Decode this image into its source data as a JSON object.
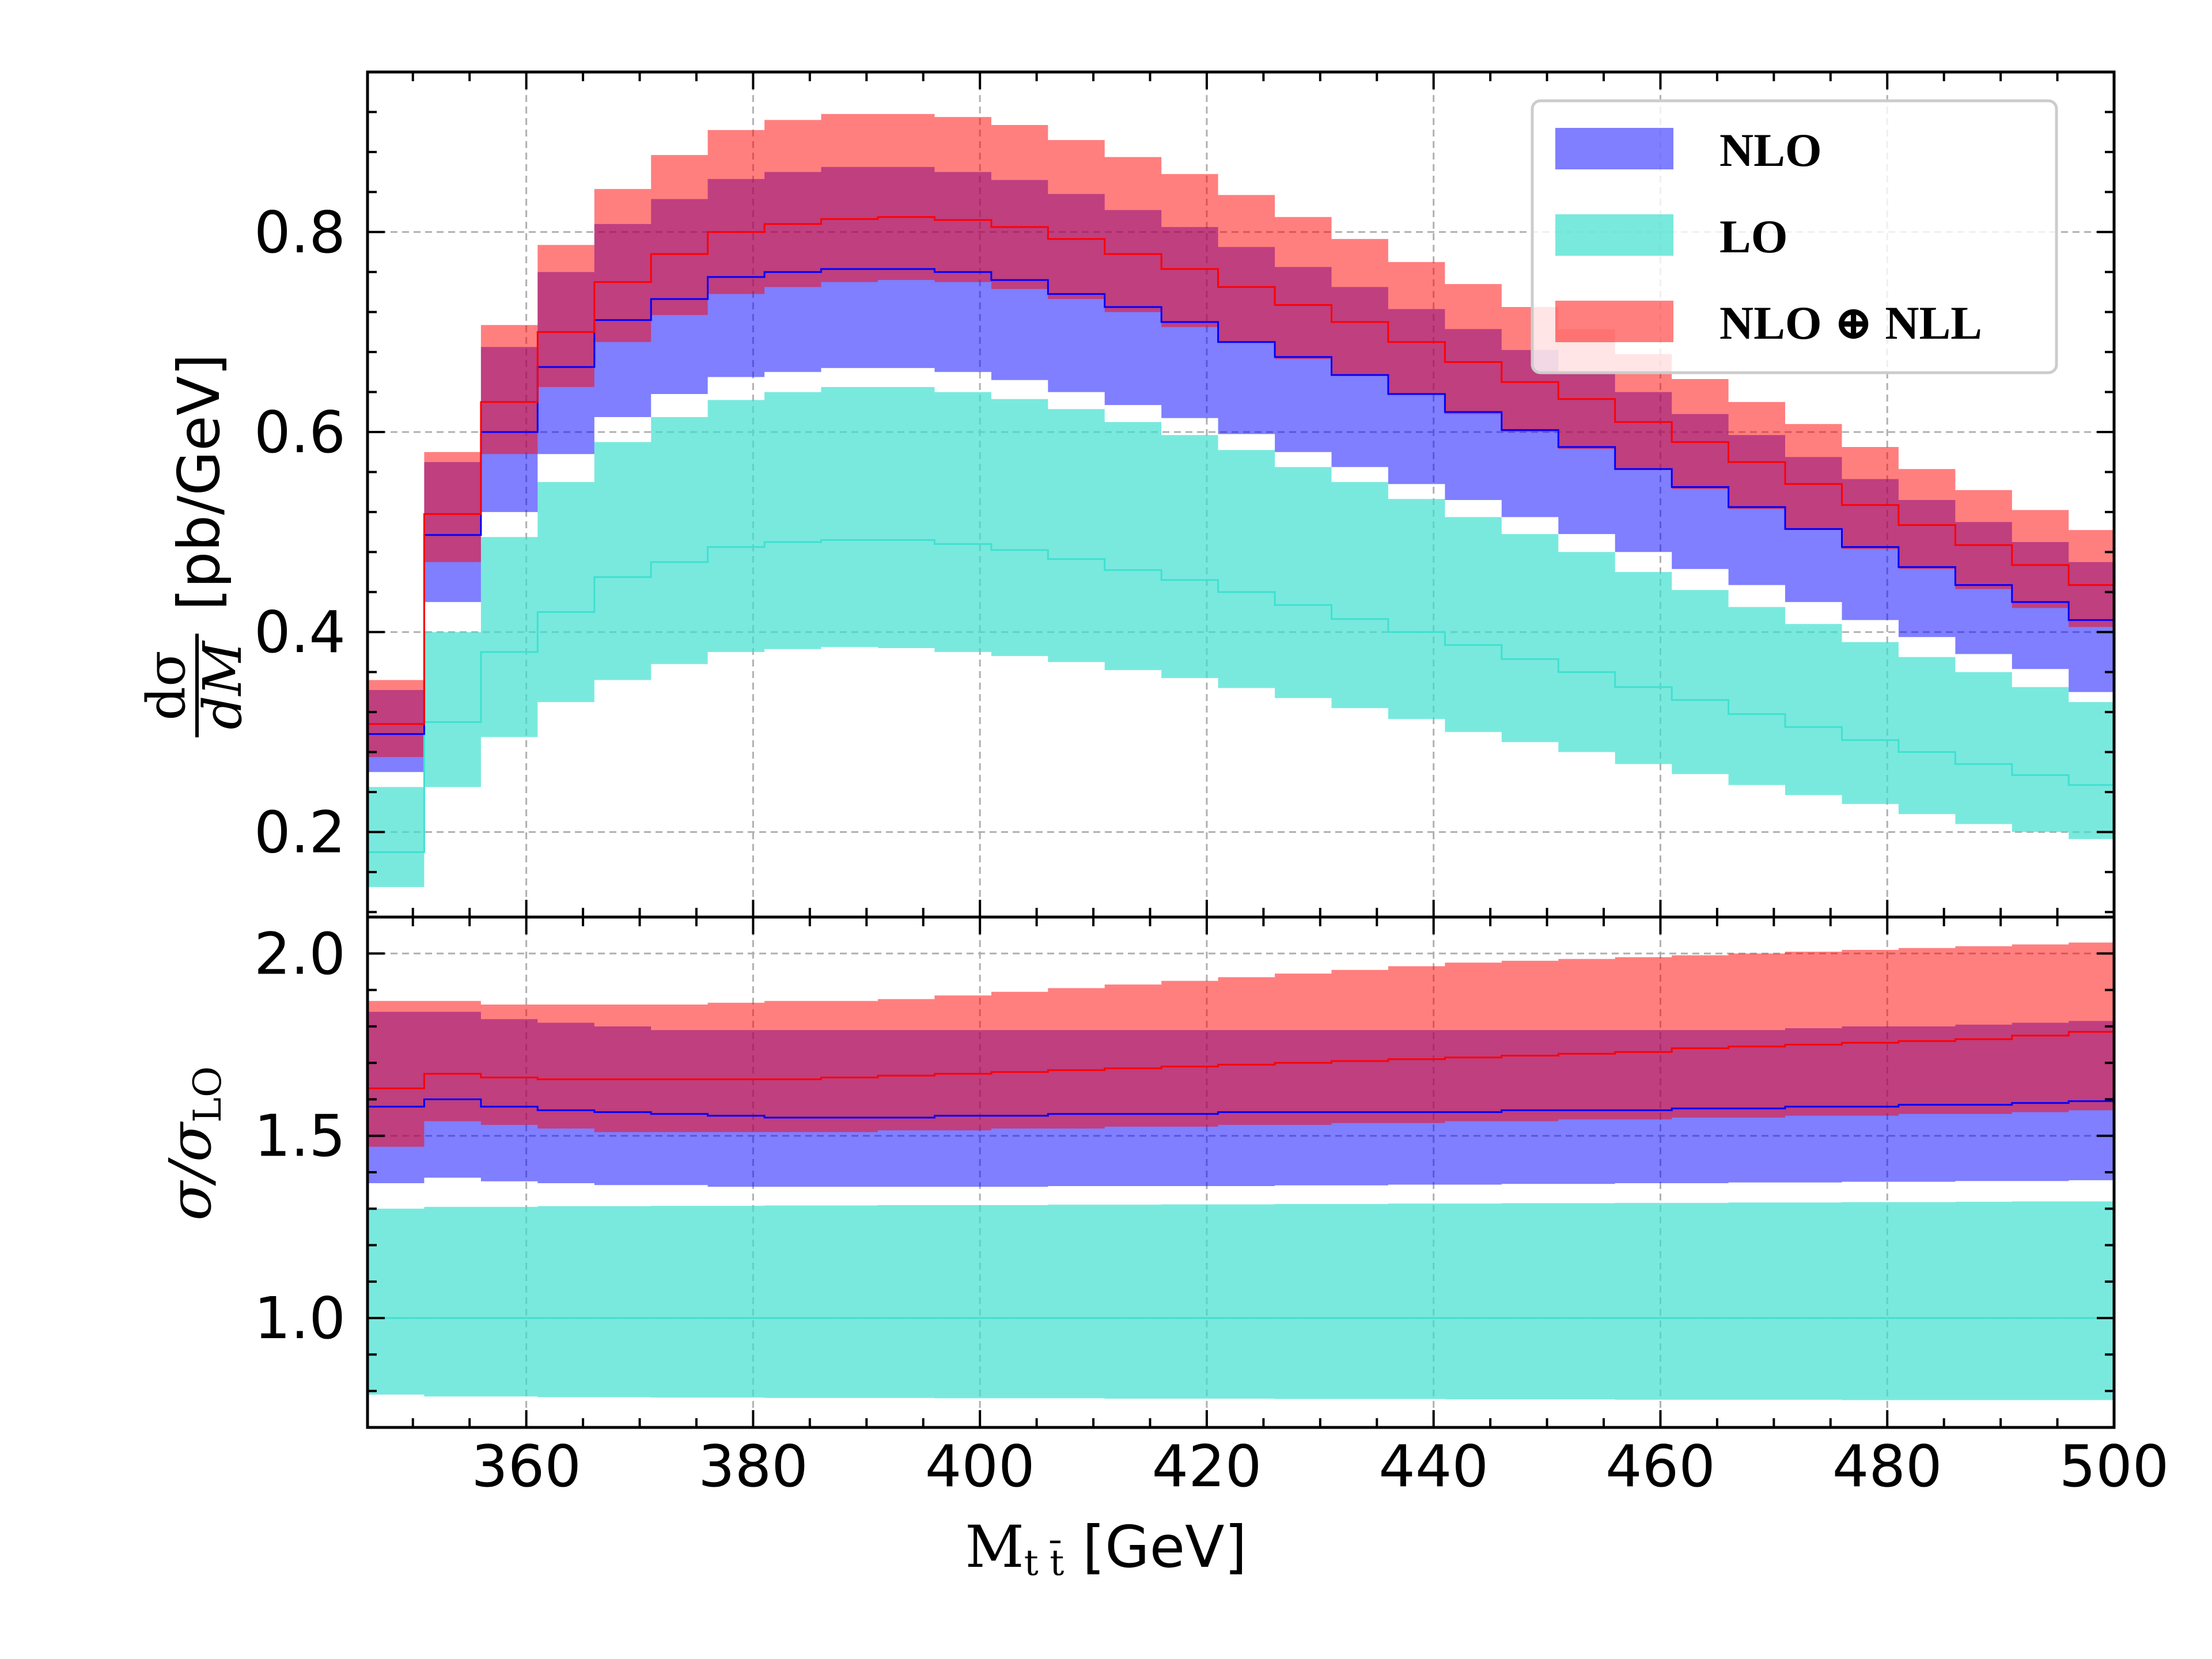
{
  "chart_data": {
    "type": "area",
    "bin_edges": [
      346,
      351,
      356,
      361,
      366,
      371,
      376,
      381,
      386,
      391,
      396,
      401,
      406,
      411,
      416,
      421,
      426,
      431,
      436,
      441,
      446,
      451,
      456,
      461,
      466,
      471,
      476,
      481,
      486,
      491,
      496,
      500
    ],
    "xlabel": {
      "main": "M",
      "sub": "t t̄",
      "unit": " [GeV]"
    },
    "xlim": [
      346,
      500
    ],
    "x_ticks": [
      360,
      380,
      400,
      420,
      440,
      460,
      480,
      500
    ],
    "x_tick_labels": [
      "360",
      "380",
      "400",
      "420",
      "440",
      "460",
      "480",
      "500"
    ],
    "legend": {
      "position": "top-right",
      "entries": [
        {
          "key": "nlo",
          "label": "NLO"
        },
        {
          "key": "lo",
          "label": "LO"
        },
        {
          "key": "nlonll",
          "label": "NLO ⊕ NLL"
        }
      ]
    },
    "grid": true,
    "colors": {
      "lo": "#40e0d0",
      "nlo": "#0000ff",
      "nlonll": "#ff0000"
    },
    "top_panel": {
      "ylabel": "[pb/GeV]",
      "ylabel_fraction": {
        "numerator": "dσ",
        "denominator": "dM"
      },
      "ylim": [
        0.115,
        0.96
      ],
      "y_ticks": [
        0.2,
        0.4,
        0.6,
        0.8
      ],
      "y_tick_labels": [
        "0.2",
        "0.4",
        "0.6",
        "0.8"
      ],
      "series": [
        {
          "key": "lo",
          "central": [
            0.18,
            0.31,
            0.38,
            0.42,
            0.455,
            0.47,
            0.485,
            0.49,
            0.492,
            0.492,
            0.488,
            0.482,
            0.473,
            0.462,
            0.452,
            0.44,
            0.427,
            0.413,
            0.4,
            0.387,
            0.373,
            0.36,
            0.345,
            0.332,
            0.318,
            0.305,
            0.292,
            0.28,
            0.268,
            0.257,
            0.247
          ],
          "lower": [
            0.145,
            0.245,
            0.295,
            0.33,
            0.352,
            0.368,
            0.38,
            0.383,
            0.385,
            0.384,
            0.38,
            0.376,
            0.37,
            0.362,
            0.354,
            0.344,
            0.334,
            0.324,
            0.313,
            0.3,
            0.29,
            0.28,
            0.268,
            0.258,
            0.247,
            0.237,
            0.228,
            0.218,
            0.208,
            0.2,
            0.193
          ],
          "upper": [
            0.245,
            0.4,
            0.495,
            0.55,
            0.59,
            0.615,
            0.632,
            0.64,
            0.645,
            0.645,
            0.64,
            0.633,
            0.623,
            0.61,
            0.597,
            0.582,
            0.565,
            0.55,
            0.533,
            0.515,
            0.498,
            0.48,
            0.46,
            0.442,
            0.425,
            0.408,
            0.39,
            0.375,
            0.36,
            0.345,
            0.33
          ]
        },
        {
          "key": "nlo",
          "central": [
            0.298,
            0.497,
            0.6,
            0.665,
            0.712,
            0.733,
            0.755,
            0.76,
            0.763,
            0.763,
            0.76,
            0.752,
            0.738,
            0.725,
            0.71,
            0.69,
            0.675,
            0.657,
            0.638,
            0.62,
            0.602,
            0.585,
            0.563,
            0.545,
            0.525,
            0.503,
            0.485,
            0.465,
            0.447,
            0.43,
            0.412
          ],
          "lower": [
            0.26,
            0.43,
            0.52,
            0.578,
            0.615,
            0.638,
            0.655,
            0.66,
            0.664,
            0.664,
            0.66,
            0.652,
            0.64,
            0.627,
            0.614,
            0.598,
            0.58,
            0.565,
            0.548,
            0.532,
            0.515,
            0.498,
            0.48,
            0.463,
            0.447,
            0.43,
            0.412,
            0.395,
            0.378,
            0.363,
            0.34
          ],
          "upper": [
            0.342,
            0.57,
            0.685,
            0.76,
            0.808,
            0.833,
            0.853,
            0.86,
            0.865,
            0.865,
            0.86,
            0.852,
            0.838,
            0.822,
            0.805,
            0.785,
            0.765,
            0.745,
            0.723,
            0.703,
            0.682,
            0.66,
            0.64,
            0.618,
            0.597,
            0.575,
            0.553,
            0.532,
            0.51,
            0.49,
            0.47
          ]
        },
        {
          "key": "nlonll",
          "central": [
            0.308,
            0.518,
            0.63,
            0.7,
            0.75,
            0.778,
            0.8,
            0.808,
            0.813,
            0.815,
            0.812,
            0.805,
            0.793,
            0.778,
            0.763,
            0.745,
            0.727,
            0.71,
            0.69,
            0.67,
            0.65,
            0.633,
            0.61,
            0.59,
            0.57,
            0.548,
            0.527,
            0.507,
            0.487,
            0.467,
            0.447
          ],
          "lower": [
            0.275,
            0.47,
            0.578,
            0.645,
            0.69,
            0.717,
            0.738,
            0.745,
            0.75,
            0.752,
            0.75,
            0.743,
            0.733,
            0.72,
            0.705,
            0.69,
            0.673,
            0.657,
            0.638,
            0.618,
            0.6,
            0.583,
            0.563,
            0.543,
            0.523,
            0.503,
            0.483,
            0.463,
            0.443,
            0.424,
            0.405
          ],
          "upper": [
            0.352,
            0.58,
            0.707,
            0.787,
            0.843,
            0.877,
            0.902,
            0.912,
            0.918,
            0.918,
            0.915,
            0.907,
            0.892,
            0.875,
            0.858,
            0.837,
            0.815,
            0.793,
            0.77,
            0.748,
            0.725,
            0.703,
            0.678,
            0.653,
            0.63,
            0.608,
            0.585,
            0.563,
            0.542,
            0.522,
            0.502
          ]
        }
      ]
    },
    "bottom_panel": {
      "ylabel": {
        "main": "σ/σ",
        "sub": "LO"
      },
      "ylim": [
        0.7,
        2.1
      ],
      "y_ticks": [
        1.0,
        1.5,
        2.0
      ],
      "y_tick_labels": [
        "1.0",
        "1.5",
        "2.0"
      ],
      "series": [
        {
          "key": "lo",
          "central": [
            1,
            1,
            1,
            1,
            1,
            1,
            1,
            1,
            1,
            1,
            1,
            1,
            1,
            1,
            1,
            1,
            1,
            1,
            1,
            1,
            1,
            1,
            1,
            1,
            1,
            1,
            1,
            1,
            1,
            1,
            1
          ],
          "lower": [
            0.79,
            0.785,
            0.785,
            0.783,
            0.783,
            0.782,
            0.782,
            0.781,
            0.781,
            0.781,
            0.78,
            0.78,
            0.78,
            0.779,
            0.779,
            0.779,
            0.778,
            0.778,
            0.778,
            0.777,
            0.777,
            0.777,
            0.776,
            0.776,
            0.776,
            0.776,
            0.775,
            0.775,
            0.775,
            0.775,
            0.775
          ],
          "upper": [
            1.3,
            1.305,
            1.305,
            1.307,
            1.307,
            1.308,
            1.308,
            1.309,
            1.309,
            1.31,
            1.31,
            1.31,
            1.311,
            1.311,
            1.312,
            1.312,
            1.313,
            1.313,
            1.314,
            1.314,
            1.315,
            1.315,
            1.316,
            1.316,
            1.317,
            1.317,
            1.318,
            1.318,
            1.319,
            1.32,
            1.32
          ]
        },
        {
          "key": "nlo",
          "central": [
            1.58,
            1.6,
            1.58,
            1.57,
            1.565,
            1.56,
            1.555,
            1.55,
            1.55,
            1.55,
            1.555,
            1.555,
            1.56,
            1.56,
            1.56,
            1.565,
            1.565,
            1.565,
            1.565,
            1.565,
            1.57,
            1.57,
            1.57,
            1.575,
            1.575,
            1.58,
            1.58,
            1.585,
            1.585,
            1.59,
            1.595
          ],
          "lower": [
            1.37,
            1.385,
            1.375,
            1.37,
            1.365,
            1.365,
            1.36,
            1.36,
            1.36,
            1.36,
            1.36,
            1.36,
            1.362,
            1.362,
            1.362,
            1.362,
            1.364,
            1.364,
            1.366,
            1.366,
            1.368,
            1.368,
            1.37,
            1.37,
            1.372,
            1.372,
            1.374,
            1.374,
            1.376,
            1.376,
            1.378
          ],
          "upper": [
            1.84,
            1.84,
            1.82,
            1.81,
            1.8,
            1.79,
            1.79,
            1.79,
            1.79,
            1.79,
            1.79,
            1.79,
            1.79,
            1.79,
            1.79,
            1.79,
            1.79,
            1.79,
            1.79,
            1.79,
            1.79,
            1.79,
            1.79,
            1.79,
            1.79,
            1.795,
            1.8,
            1.8,
            1.805,
            1.81,
            1.815
          ]
        },
        {
          "key": "nlonll",
          "central": [
            1.63,
            1.67,
            1.66,
            1.655,
            1.655,
            1.655,
            1.655,
            1.655,
            1.66,
            1.665,
            1.67,
            1.675,
            1.68,
            1.685,
            1.69,
            1.695,
            1.7,
            1.705,
            1.71,
            1.715,
            1.72,
            1.725,
            1.73,
            1.74,
            1.745,
            1.75,
            1.755,
            1.76,
            1.765,
            1.775,
            1.785
          ],
          "lower": [
            1.47,
            1.54,
            1.53,
            1.52,
            1.51,
            1.51,
            1.51,
            1.51,
            1.51,
            1.515,
            1.515,
            1.52,
            1.52,
            1.525,
            1.525,
            1.53,
            1.53,
            1.535,
            1.535,
            1.54,
            1.54,
            1.545,
            1.545,
            1.55,
            1.55,
            1.555,
            1.555,
            1.56,
            1.56,
            1.565,
            1.57
          ],
          "upper": [
            1.87,
            1.87,
            1.86,
            1.86,
            1.86,
            1.86,
            1.865,
            1.87,
            1.87,
            1.875,
            1.885,
            1.895,
            1.905,
            1.915,
            1.925,
            1.935,
            1.945,
            1.955,
            1.965,
            1.975,
            1.98,
            1.985,
            1.99,
            1.995,
            2.0,
            2.005,
            2.01,
            2.015,
            2.02,
            2.025,
            2.03
          ]
        }
      ]
    }
  }
}
